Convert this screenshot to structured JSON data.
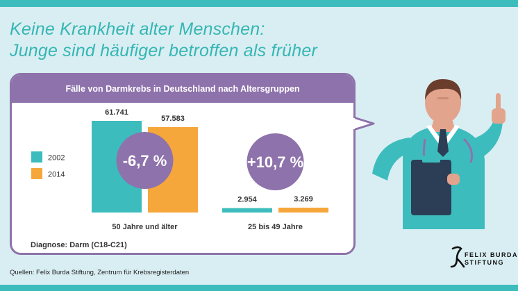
{
  "headline": {
    "line1": "Keine Krankheit alter Menschen:",
    "line2": "Junge sind häufiger betroffen als früher"
  },
  "panel": {
    "title": "Fälle von Darmkrebs in Deutschland nach Altersgruppen",
    "diagnosis": "Diagnose: Darm (C18-C21)"
  },
  "sources": "Quellen: Felix Burda Stiftung, Zentrum für Krebsregisterdaten",
  "logo": {
    "line1": "FELIX BURDA",
    "line2": "STIFTUNG"
  },
  "colors": {
    "series_2002": "#3dbcbd",
    "series_2014": "#f6a73b",
    "purple": "#8e72ab",
    "headline": "#35b6b4",
    "background": "#d9eef2"
  },
  "chart_data": {
    "type": "bar",
    "title": "Fälle von Darmkrebs in Deutschland nach Altersgruppen",
    "categories": [
      "50 Jahre und älter",
      "25 bis 49 Jahre"
    ],
    "series": [
      {
        "name": "2002",
        "values": [
          61741,
          2954
        ],
        "labels": [
          "61.741",
          "2.954"
        ]
      },
      {
        "name": "2014",
        "values": [
          57583,
          3269
        ],
        "labels": [
          "57.583",
          "3.269"
        ]
      }
    ],
    "changes": [
      "-6,7 %",
      "+10,7 %"
    ],
    "legend_position": "left",
    "ylim": [
      0,
      61741
    ],
    "grid": false
  }
}
